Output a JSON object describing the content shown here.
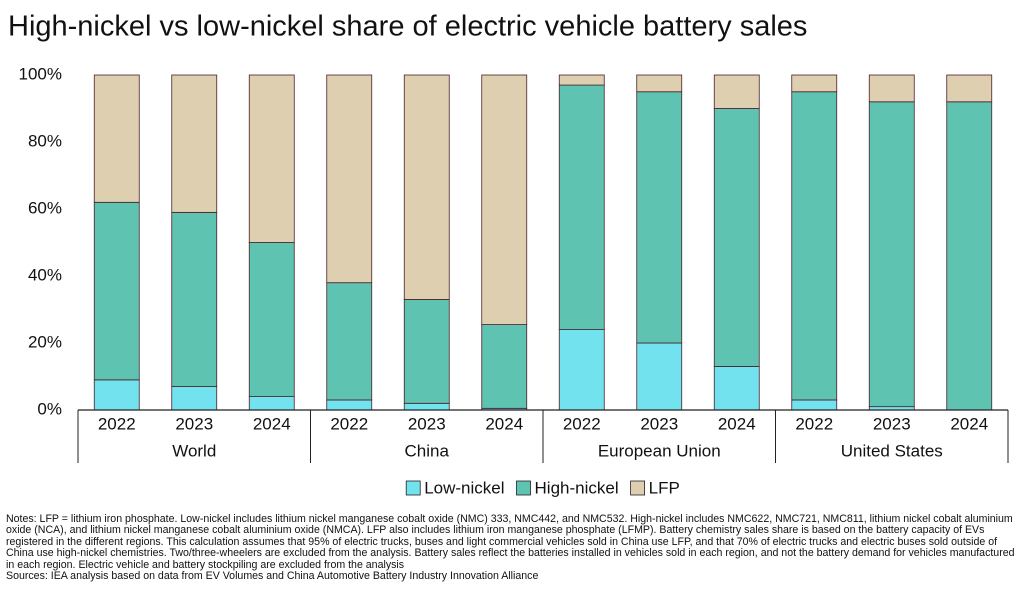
{
  "chart_data": {
    "type": "stacked-bar",
    "title": "High-nickel vs low-nickel share of electric vehicle battery sales",
    "categories": [
      "2022",
      "2023",
      "2024",
      "2022",
      "2023",
      "2024",
      "2022",
      "2023",
      "2024",
      "2022",
      "2023",
      "2024"
    ],
    "groups": [
      "World",
      "China",
      "European Union",
      "United States"
    ],
    "series": [
      {
        "name": "Low-nickel",
        "color": "#72e2ee",
        "values": [
          9,
          7,
          4,
          3,
          2,
          0.5,
          24,
          20,
          13,
          3,
          1,
          0
        ]
      },
      {
        "name": "High-nickel",
        "color": "#5ec3b0",
        "values": [
          53,
          52,
          46,
          35,
          31,
          25,
          73,
          75,
          77,
          92,
          91,
          92
        ]
      },
      {
        "name": "LFP",
        "color": "#ddcfb0",
        "values": [
          38,
          41,
          50,
          62,
          67,
          74.5,
          3,
          5,
          10,
          5,
          8,
          8
        ]
      }
    ],
    "ylim": [
      0,
      100
    ],
    "yticks": [
      {
        "value": 0,
        "label": "0%"
      },
      {
        "value": 20,
        "label": "20%"
      },
      {
        "value": 40,
        "label": "40%"
      },
      {
        "value": 60,
        "label": "60%"
      },
      {
        "value": 80,
        "label": "80%"
      },
      {
        "value": 100,
        "label": "100%"
      }
    ],
    "grid": false,
    "legend": "bottom",
    "notes": "Notes: LFP = lithium iron phosphate. Low-nickel includes lithium nickel manganese cobalt oxide (NMC) 333, NMC442, and NMC532. High-nickel includes NMC622, NMC721, NMC811, lithium nickel cobalt aluminium oxide (NCA), and lithium nickel manganese cobalt aluminium oxide (NMCA). LFP also includes lithium iron manganese phosphate (LFMP). Battery chemistry sales share is based on the battery capacity of EVs registered in the different regions. This calculation assumes that 95% of electric trucks, buses and light commercial vehicles sold in China use LFP, and that 70% of electric trucks and electric buses sold outside of China use high-nickel chemistries. Two/three-wheelers are excluded from the analysis. Battery sales reflect the batteries installed in vehicles sold in each region, and not the battery demand for vehicles manufactured in each region. Electric vehicle and battery stockpiling are excluded from the analysis",
    "sources": "Sources: IEA analysis based on data from EV Volumes and China Automotive Battery Industry Innovation Alliance"
  }
}
